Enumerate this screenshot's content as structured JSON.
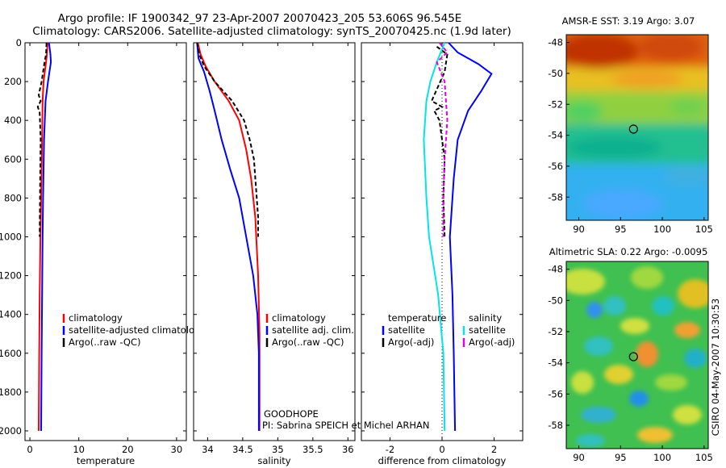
{
  "header": {
    "line1": "Argo profile: IF 1900342_97 23-Apr-2007 20070423_205 53.606S 96.545E",
    "line2": "Climatology: CARS2006. Satellite-adjusted climatology: synTS_20070425.nc (1.9d later)"
  },
  "footer": {
    "project": "GOODHOPE",
    "pi": "PI: Sabrina SPEICH et Michel ARHAN",
    "stamp": "CSIRO 04-May-2007 10:30:53"
  },
  "colors": {
    "climatology": "#ff0000",
    "satellite": "#0000ff",
    "argo": "#000000",
    "diff_satellite_salinity": "#00e5e5",
    "diff_argo_salinity": "#e000e0"
  },
  "chart_data": [
    {
      "id": "temperature",
      "type": "line",
      "xlabel": "temperature",
      "xlim": [
        -1,
        32
      ],
      "ylim": [
        2050,
        0
      ],
      "xticks": [
        0,
        10,
        20,
        30
      ],
      "yticks": [
        0,
        200,
        400,
        600,
        800,
        1000,
        1200,
        1400,
        1600,
        1800,
        2000
      ],
      "legend": [
        "climatology",
        "satellite-adjusted climatology",
        "Argo(..raw -QC)"
      ],
      "series": [
        {
          "name": "climatology",
          "color": "#ff0000",
          "dash": false,
          "points": [
            [
              3.6,
              0
            ],
            [
              3.5,
              50
            ],
            [
              3.3,
              100
            ],
            [
              2.8,
              200
            ],
            [
              2.6,
              300
            ],
            [
              2.5,
              500
            ],
            [
              2.3,
              800
            ],
            [
              2.15,
              1000
            ],
            [
              2.0,
              1300
            ],
            [
              1.9,
              1600
            ],
            [
              1.8,
              2000
            ]
          ]
        },
        {
          "name": "satellite-adjusted climatology",
          "color": "#0000ff",
          "dash": false,
          "points": [
            [
              3.9,
              0
            ],
            [
              4.2,
              60
            ],
            [
              4.3,
              100
            ],
            [
              3.7,
              200
            ],
            [
              3.2,
              300
            ],
            [
              2.9,
              500
            ],
            [
              2.7,
              800
            ],
            [
              2.6,
              1000
            ],
            [
              2.5,
              1300
            ],
            [
              2.4,
              1600
            ],
            [
              2.3,
              2000
            ]
          ]
        },
        {
          "name": "Argo(..raw -QC)",
          "color": "#000000",
          "dash": true,
          "points": [
            [
              3.4,
              0
            ],
            [
              3.3,
              60
            ],
            [
              3.0,
              100
            ],
            [
              2.4,
              200
            ],
            [
              1.8,
              270
            ],
            [
              2.2,
              300
            ],
            [
              1.6,
              330
            ],
            [
              2.0,
              360
            ],
            [
              2.2,
              500
            ],
            [
              2.1,
              700
            ],
            [
              2.0,
              1000
            ]
          ]
        }
      ]
    },
    {
      "id": "salinity",
      "type": "line",
      "xlabel": "salinity",
      "xlim": [
        33.8,
        36.1
      ],
      "ylim": [
        2050,
        0
      ],
      "xticks": [
        34,
        34.5,
        35,
        35.5,
        36
      ],
      "xticklabels": [
        "34",
        "34.5",
        "35",
        "35.5",
        "36"
      ],
      "yticks": [
        0,
        200,
        400,
        600,
        800,
        1000,
        1200,
        1400,
        1600,
        1800,
        2000
      ],
      "legend": [
        "climatology",
        "satellite adj. clim.",
        "Argo(..raw -QC)"
      ],
      "series": [
        {
          "name": "climatology",
          "color": "#ff0000",
          "dash": false,
          "points": [
            [
              33.86,
              0
            ],
            [
              33.9,
              60
            ],
            [
              33.97,
              120
            ],
            [
              34.1,
              200
            ],
            [
              34.3,
              300
            ],
            [
              34.45,
              400
            ],
            [
              34.55,
              550
            ],
            [
              34.62,
              700
            ],
            [
              34.68,
              900
            ],
            [
              34.72,
              1200
            ],
            [
              34.74,
              1500
            ],
            [
              34.74,
              2000
            ]
          ]
        },
        {
          "name": "satellite adj. clim.",
          "color": "#0000ff",
          "dash": false,
          "points": [
            [
              33.85,
              0
            ],
            [
              33.87,
              80
            ],
            [
              33.95,
              150
            ],
            [
              34.03,
              250
            ],
            [
              34.1,
              350
            ],
            [
              34.2,
              500
            ],
            [
              34.32,
              650
            ],
            [
              34.45,
              800
            ],
            [
              34.55,
              1000
            ],
            [
              34.65,
              1200
            ],
            [
              34.71,
              1400
            ],
            [
              34.73,
              1600
            ],
            [
              34.73,
              2000
            ]
          ]
        },
        {
          "name": "Argo(..raw -QC)",
          "color": "#000000",
          "dash": true,
          "points": [
            [
              33.85,
              0
            ],
            [
              33.88,
              60
            ],
            [
              33.95,
              120
            ],
            [
              34.1,
              200
            ],
            [
              34.35,
              300
            ],
            [
              34.52,
              400
            ],
            [
              34.6,
              500
            ],
            [
              34.66,
              600
            ],
            [
              34.68,
              700
            ],
            [
              34.7,
              800
            ],
            [
              34.72,
              900
            ],
            [
              34.72,
              1000
            ]
          ]
        }
      ]
    },
    {
      "id": "difference",
      "type": "line",
      "xlabel": "difference from climatology",
      "xlim": [
        -3.1,
        3.1
      ],
      "ylim": [
        2050,
        0
      ],
      "xticks": [
        -2,
        0,
        2
      ],
      "yticks": [
        0,
        200,
        400,
        600,
        800,
        1000,
        1200,
        1400,
        1600,
        1800,
        2000
      ],
      "legend_headers": [
        "temperature",
        "salinity"
      ],
      "legend": [
        "satellite",
        "Argo(-adj)",
        "satellite",
        "Argo(-adj)"
      ],
      "series": [
        {
          "name": "satellite",
          "color": "#0000ff",
          "dash": false,
          "points": [
            [
              0.25,
              0
            ],
            [
              0.6,
              50
            ],
            [
              1.4,
              110
            ],
            [
              1.9,
              160
            ],
            [
              1.5,
              250
            ],
            [
              1.0,
              350
            ],
            [
              0.6,
              500
            ],
            [
              0.45,
              700
            ],
            [
              0.3,
              1000
            ],
            [
              0.4,
              1300
            ],
            [
              0.45,
              1600
            ],
            [
              0.5,
              2000
            ]
          ]
        },
        {
          "name": "Argo(-adj)",
          "color": "#000000",
          "dash": true,
          "points": [
            [
              -0.2,
              20
            ],
            [
              0.2,
              60
            ],
            [
              0.1,
              150
            ],
            [
              -0.4,
              300
            ],
            [
              0.0,
              330
            ],
            [
              -0.3,
              350
            ],
            [
              -0.1,
              400
            ],
            [
              0.1,
              600
            ],
            [
              0.05,
              800
            ],
            [
              0.1,
              1000
            ]
          ]
        },
        {
          "name": "satellite",
          "color": "#00e5e5",
          "dash": false,
          "points": [
            [
              0.1,
              0
            ],
            [
              -0.2,
              100
            ],
            [
              -0.45,
              200
            ],
            [
              -0.6,
              300
            ],
            [
              -0.7,
              500
            ],
            [
              -0.6,
              800
            ],
            [
              -0.5,
              1000
            ],
            [
              -0.15,
              1300
            ],
            [
              0.05,
              1600
            ],
            [
              0.1,
              2000
            ]
          ]
        },
        {
          "name": "Argo(-adj)",
          "color": "#e000e0",
          "dash": true,
          "points": [
            [
              -0.1,
              0
            ],
            [
              0.2,
              50
            ],
            [
              -0.2,
              100
            ],
            [
              0.1,
              200
            ],
            [
              0.2,
              400
            ],
            [
              0.1,
              600
            ],
            [
              0.05,
              800
            ],
            [
              0.05,
              1000
            ]
          ]
        }
      ]
    },
    {
      "id": "sst-map",
      "type": "heatmap",
      "title": "AMSR-E SST: 3.19 Argo: 3.07",
      "xlim": [
        88.5,
        105.5
      ],
      "ylim": [
        -59.5,
        -47.5
      ],
      "xticks": [
        90,
        95,
        100,
        105
      ],
      "yticks": [
        -48,
        -50,
        -52,
        -54,
        -56,
        -58
      ],
      "marker": {
        "lon": 96.545,
        "lat": -53.606
      }
    },
    {
      "id": "sla-map",
      "type": "heatmap",
      "title": "Altimetric SLA: 0.22 Argo: -0.0095",
      "xlim": [
        88.5,
        105.5
      ],
      "ylim": [
        -59.5,
        -47.5
      ],
      "xticks": [
        90,
        95,
        100,
        105
      ],
      "yticks": [
        -48,
        -50,
        -52,
        -54,
        -56,
        -58
      ],
      "marker": {
        "lon": 96.545,
        "lat": -53.606
      }
    }
  ]
}
